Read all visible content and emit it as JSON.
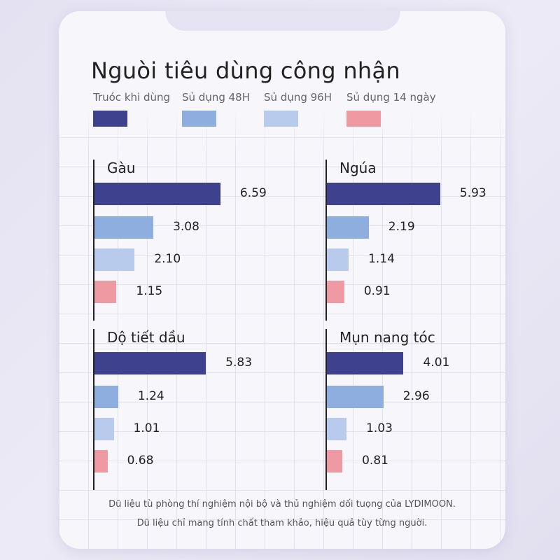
{
  "chart_data": {
    "type": "bar",
    "orientation": "horizontal",
    "title": "Nguòi tiêu dùng công nhận",
    "series": [
      {
        "name": "Truóc khi dùng",
        "color": "#3d418e"
      },
      {
        "name": "Sủ dụng 48H",
        "color": "#8eaee0"
      },
      {
        "name": "Sủ dụng 96H",
        "color": "#b9cbec"
      },
      {
        "name": "Sủ dụng 14 ngày",
        "color": "#ef9aa2"
      }
    ],
    "panels": [
      {
        "title": "Gàu",
        "values": [
          6.59,
          3.08,
          2.1,
          1.15
        ],
        "labels": [
          "6.59",
          "3.08",
          "2.10",
          "1.15"
        ]
      },
      {
        "title": "Ngúa",
        "values": [
          5.93,
          2.19,
          1.14,
          0.91
        ],
        "labels": [
          "5.93",
          "2.19",
          "1.14",
          "0.91"
        ]
      },
      {
        "title": "Dộ tiết dầu",
        "values": [
          5.83,
          1.24,
          1.01,
          0.68
        ],
        "labels": [
          "5.83",
          "1.24",
          "1.01",
          "0.68"
        ]
      },
      {
        "title": "Mụn nang tóc",
        "values": [
          4.01,
          2.96,
          1.03,
          0.81
        ],
        "labels": [
          "4.01",
          "2.96",
          "1.03",
          "0.81"
        ]
      }
    ]
  },
  "footnote": {
    "line1": "Dũ liệu tù phòng thí nghiệm nội bộ và thủ nghiệm dối tuọng của LYDIMOON.",
    "line2": "Dũ liệu chỉ mang tính chất tham khảo, hiệu quả tùy từng nguời."
  }
}
